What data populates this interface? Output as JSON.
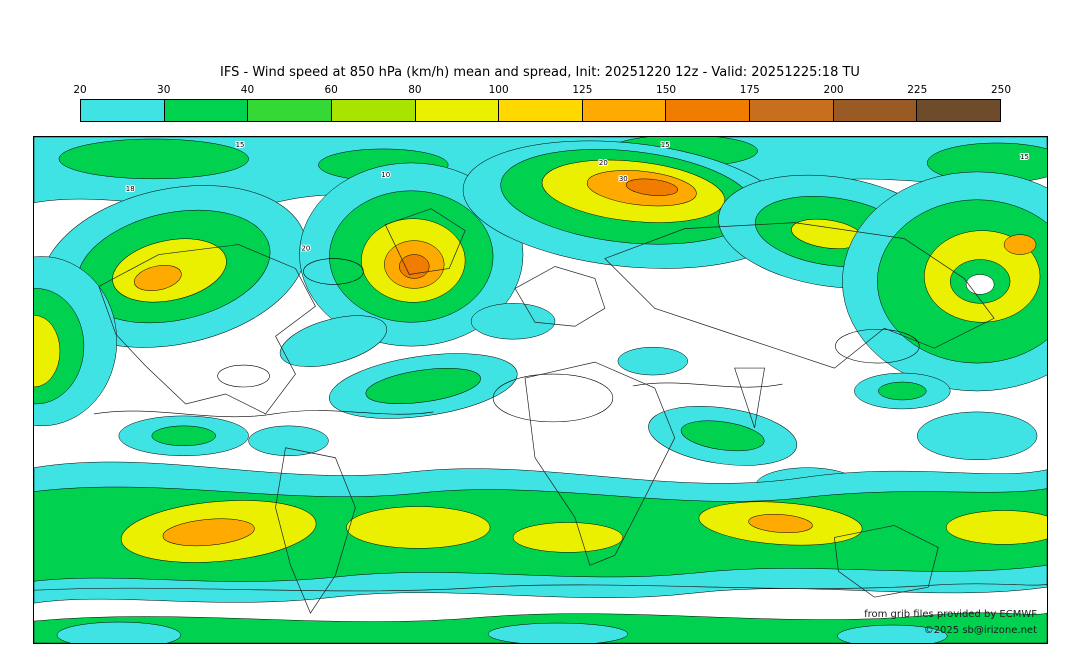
{
  "title": "IFS - Wind speed at 850 hPa (km/h) mean and spread, Init: 20251220 12z - Valid: 20251225:18 TU",
  "colorbar": {
    "ticks": [
      "20",
      "30",
      "40",
      "60",
      "80",
      "100",
      "125",
      "150",
      "175",
      "200",
      "225",
      "250"
    ],
    "colors": [
      "#3fe3e3",
      "#00d14f",
      "#35d936",
      "#a8e400",
      "#eaf000",
      "#ffd800",
      "#ffaa00",
      "#f07c00",
      "#c86f1e",
      "#9a5a24",
      "#6e4b2a"
    ]
  },
  "map": {
    "contour_labels": [
      "15",
      "10",
      "20",
      "30",
      "18",
      "15",
      "20",
      "15"
    ]
  },
  "credits": {
    "line1": "from grib files provided by ECMWF",
    "line2": "©2025 sb@irizone.net"
  }
}
